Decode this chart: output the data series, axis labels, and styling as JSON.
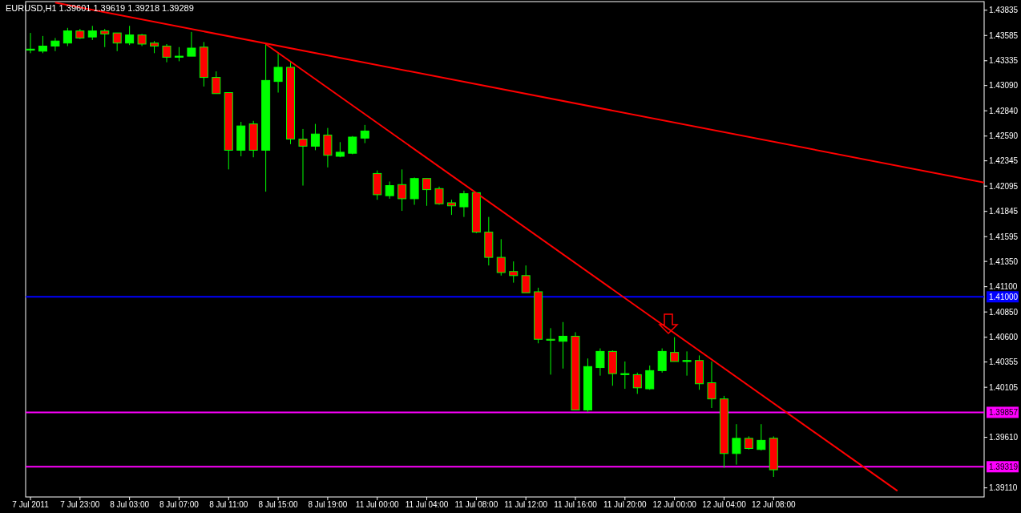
{
  "chart_data": {
    "type": "candlestick",
    "title": "EURUSD,H1  1.39601 1.39619 1.39218 1.39289",
    "categories": [
      "7 Jul 2011",
      null,
      null,
      null,
      "7 Jul 23:00",
      null,
      null,
      null,
      "8 Jul 03:00",
      null,
      null,
      null,
      "8 Jul 07:00",
      null,
      null,
      null,
      "8 Jul 11:00",
      null,
      null,
      null,
      "8 Jul 15:00",
      null,
      null,
      null,
      "8 Jul 19:00",
      null,
      null,
      null,
      "11 Jul 00:00",
      null,
      null,
      null,
      "11 Jul 04:00",
      null,
      null,
      null,
      "11 Jul 08:00",
      null,
      null,
      null,
      "11 Jul 12:00",
      null,
      null,
      null,
      "11 Jul 16:00",
      null,
      null,
      null,
      "11 Jul 20:00",
      null,
      null,
      null,
      "12 Jul 00:00",
      null,
      null,
      null,
      "12 Jul 04:00",
      null,
      null,
      null,
      "12 Jul 08:00",
      null,
      null,
      null,
      null,
      null,
      null,
      null,
      null,
      null,
      null,
      null,
      null,
      null,
      null,
      null,
      null,
      null
    ],
    "ohlc": [
      [
        1.4344,
        1.4361,
        1.4341,
        1.4345
      ],
      [
        1.4343,
        1.4358,
        1.4341,
        1.4348
      ],
      [
        1.4348,
        1.4356,
        1.4343,
        1.4353
      ],
      [
        1.4351,
        1.4366,
        1.4348,
        1.4363
      ],
      [
        1.4363,
        1.4365,
        1.4355,
        1.4356
      ],
      [
        1.4357,
        1.4368,
        1.4354,
        1.4363
      ],
      [
        1.4363,
        1.4365,
        1.4347,
        1.436
      ],
      [
        1.4361,
        1.4361,
        1.4343,
        1.4351
      ],
      [
        1.4351,
        1.4368,
        1.4349,
        1.4359
      ],
      [
        1.4359,
        1.436,
        1.4348,
        1.435
      ],
      [
        1.4351,
        1.4353,
        1.4341,
        1.4348
      ],
      [
        1.4348,
        1.435,
        1.4332,
        1.4337
      ],
      [
        1.4337,
        1.4347,
        1.4333,
        1.4338
      ],
      [
        1.4338,
        1.4362,
        1.4338,
        1.4346
      ],
      [
        1.4347,
        1.4352,
        1.4308,
        1.4317
      ],
      [
        1.4317,
        1.4323,
        1.4301,
        1.4301
      ],
      [
        1.4302,
        1.4302,
        1.4226,
        1.4245
      ],
      [
        1.4245,
        1.4273,
        1.4239,
        1.4269
      ],
      [
        1.4271,
        1.4274,
        1.4238,
        1.4245
      ],
      [
        1.4245,
        1.435,
        1.4204,
        1.4314
      ],
      [
        1.4313,
        1.4341,
        1.4302,
        1.4327
      ],
      [
        1.4327,
        1.4333,
        1.4251,
        1.4256
      ],
      [
        1.4256,
        1.4266,
        1.421,
        1.4249
      ],
      [
        1.4249,
        1.4271,
        1.4245,
        1.4261
      ],
      [
        1.426,
        1.4267,
        1.4228,
        1.424
      ],
      [
        1.4239,
        1.4253,
        1.4238,
        1.4243
      ],
      [
        1.4242,
        1.4259,
        1.4241,
        1.4258
      ],
      [
        1.4257,
        1.427,
        1.4252,
        1.4264
      ],
      [
        1.4222,
        1.4225,
        1.4196,
        1.4201
      ],
      [
        1.42,
        1.4214,
        1.4197,
        1.421
      ],
      [
        1.4211,
        1.4226,
        1.4185,
        1.4197
      ],
      [
        1.4197,
        1.4218,
        1.4191,
        1.4217
      ],
      [
        1.4217,
        1.4217,
        1.419,
        1.4206
      ],
      [
        1.4207,
        1.4209,
        1.4191,
        1.4192
      ],
      [
        1.4193,
        1.4196,
        1.4181,
        1.419
      ],
      [
        1.4189,
        1.4205,
        1.4179,
        1.4202
      ],
      [
        1.4203,
        1.4203,
        1.4163,
        1.4164
      ],
      [
        1.4164,
        1.4179,
        1.4131,
        1.4139
      ],
      [
        1.4139,
        1.4157,
        1.4121,
        1.4124
      ],
      [
        1.4125,
        1.4135,
        1.4114,
        1.4121
      ],
      [
        1.4121,
        1.4131,
        1.4104,
        1.4104
      ],
      [
        1.4105,
        1.4109,
        1.4054,
        1.4058
      ],
      [
        1.4058,
        1.4069,
        1.4023,
        1.4057
      ],
      [
        1.4056,
        1.4075,
        1.4029,
        1.4061
      ],
      [
        1.4061,
        1.4065,
        1.3988,
        1.3988
      ],
      [
        1.3988,
        1.4039,
        1.3986,
        1.4031
      ],
      [
        1.403,
        1.4049,
        1.4022,
        1.4046
      ],
      [
        1.4046,
        1.4047,
        1.4012,
        1.4024
      ],
      [
        1.4023,
        1.4036,
        1.4009,
        1.4024
      ],
      [
        1.4023,
        1.4025,
        1.4004,
        1.401
      ],
      [
        1.4009,
        1.4032,
        1.4008,
        1.4027
      ],
      [
        1.4027,
        1.4049,
        1.4025,
        1.4046
      ],
      [
        1.4045,
        1.406,
        1.4036,
        1.4036
      ],
      [
        1.4036,
        1.4046,
        1.4022,
        1.4037
      ],
      [
        1.4037,
        1.4042,
        1.4008,
        1.4014
      ],
      [
        1.4015,
        1.4036,
        1.399,
        1.3999
      ],
      [
        1.3999,
        1.4002,
        1.3931,
        1.3945
      ],
      [
        1.3945,
        1.3974,
        1.3934,
        1.396
      ],
      [
        1.396,
        1.3962,
        1.3949,
        1.395
      ],
      [
        1.3949,
        1.3974,
        1.3948,
        1.3958
      ],
      [
        1.39601,
        1.39619,
        1.39218,
        1.39289
      ],
      null,
      null,
      null,
      null,
      null,
      null,
      null,
      null,
      null,
      null,
      null,
      null,
      null,
      null,
      null,
      null,
      null
    ],
    "colors": [
      "#00ff00",
      "#00ff00",
      "#00ff00",
      "#00ff00",
      "#ff0000",
      "#00ff00",
      "#ff0000",
      "#ff0000",
      "#00ff00",
      "#ff0000",
      "#ff0000",
      "#ff0000",
      "#00ff00",
      "#00ff00",
      "#ff0000",
      "#ff0000",
      "#ff0000",
      "#00ff00",
      "#ff0000",
      "#00ff00",
      "#00ff00",
      "#ff0000",
      "#ff0000",
      "#00ff00",
      "#ff0000",
      "#00ff00",
      "#00ff00",
      "#00ff00",
      "#ff0000",
      "#00ff00",
      "#ff0000",
      "#00ff00",
      "#ff0000",
      "#ff0000",
      "#ff0000",
      "#00ff00",
      "#ff0000",
      "#ff0000",
      "#ff0000",
      "#ff0000",
      "#ff0000",
      "#ff0000",
      "#ff0000",
      "#00ff00",
      "#ff0000",
      "#00ff00",
      "#00ff00",
      "#ff0000",
      "#00ff00",
      "#ff0000",
      "#00ff00",
      "#00ff00",
      "#ff0000",
      "#00ff00",
      "#ff0000",
      "#ff0000",
      "#ff0000",
      "#00ff00",
      "#ff0000",
      "#00ff00",
      "#ff0000",
      null,
      null,
      null,
      null,
      null,
      null,
      null,
      null,
      null,
      null,
      null,
      null,
      null,
      null,
      null,
      null,
      null
    ],
    "series": [
      {
        "type": "line",
        "color": "#ff0000",
        "values": [
          null,
          null,
          1.4391,
          null,
          null,
          null,
          null,
          null,
          null,
          null,
          null,
          null,
          null,
          null,
          null,
          null,
          null,
          null,
          null,
          null,
          null,
          null,
          null,
          null,
          null,
          null,
          null,
          null,
          null,
          null,
          null,
          null,
          null,
          null,
          null,
          null,
          null,
          null,
          null,
          null,
          null,
          null,
          null,
          null,
          null,
          null,
          null,
          null,
          null,
          null,
          null,
          null,
          null,
          null,
          null,
          null,
          null,
          null,
          null,
          null,
          null,
          null,
          null,
          null,
          null,
          null,
          null,
          null,
          null,
          null,
          null,
          null,
          null,
          null,
          null,
          null,
          null,
          1.4213
        ]
      },
      {
        "type": "line",
        "color": "#ff0000",
        "values": [
          null,
          null,
          null,
          null,
          null,
          null,
          null,
          null,
          null,
          null,
          null,
          null,
          null,
          null,
          null,
          null,
          null,
          null,
          null,
          1.435,
          null,
          null,
          null,
          null,
          null,
          null,
          null,
          null,
          null,
          null,
          null,
          null,
          null,
          null,
          null,
          null,
          null,
          null,
          null,
          null,
          null,
          null,
          null,
          null,
          null,
          null,
          null,
          null,
          null,
          null,
          null,
          null,
          null,
          null,
          null,
          null,
          null,
          null,
          null,
          null,
          null,
          null,
          null,
          null,
          null,
          null,
          null,
          null,
          null,
          null,
          1.3908,
          null,
          null,
          null,
          null,
          null,
          null,
          null
        ]
      }
    ],
    "ref_lines": [
      {
        "axis": "y",
        "value": 1.41,
        "label": "1.41000",
        "color": "#0000ff"
      },
      {
        "axis": "y",
        "value": 1.39857,
        "label": "1.39857",
        "color": "#ff00ff"
      },
      {
        "axis": "y",
        "value": 1.39319,
        "label": "1.39319",
        "color": "#ff00ff"
      }
    ],
    "ylim": [
      1.3902,
      1.4392
    ],
    "yticks": [
      1.43835,
      1.43585,
      1.43335,
      {
        "value": 1.4309,
        "label": "1.43090"
      },
      {
        "value": 1.4284,
        "label": "1.42840"
      },
      {
        "value": 1.4259,
        "label": "1.42590"
      },
      1.42345,
      1.42095,
      1.41845,
      1.41595,
      {
        "value": 1.4135,
        "label": "1.41350"
      },
      {
        "value": 1.411,
        "label": "1.41100"
      },
      {
        "value": 1.4085,
        "label": "1.40850"
      },
      {
        "value": 1.406,
        "label": "1.40600"
      },
      1.40355,
      1.40105,
      {
        "value": 1.3961,
        "label": "1.39610"
      },
      {
        "value": 1.3911,
        "label": "1.39110"
      }
    ],
    "grid": false
  }
}
